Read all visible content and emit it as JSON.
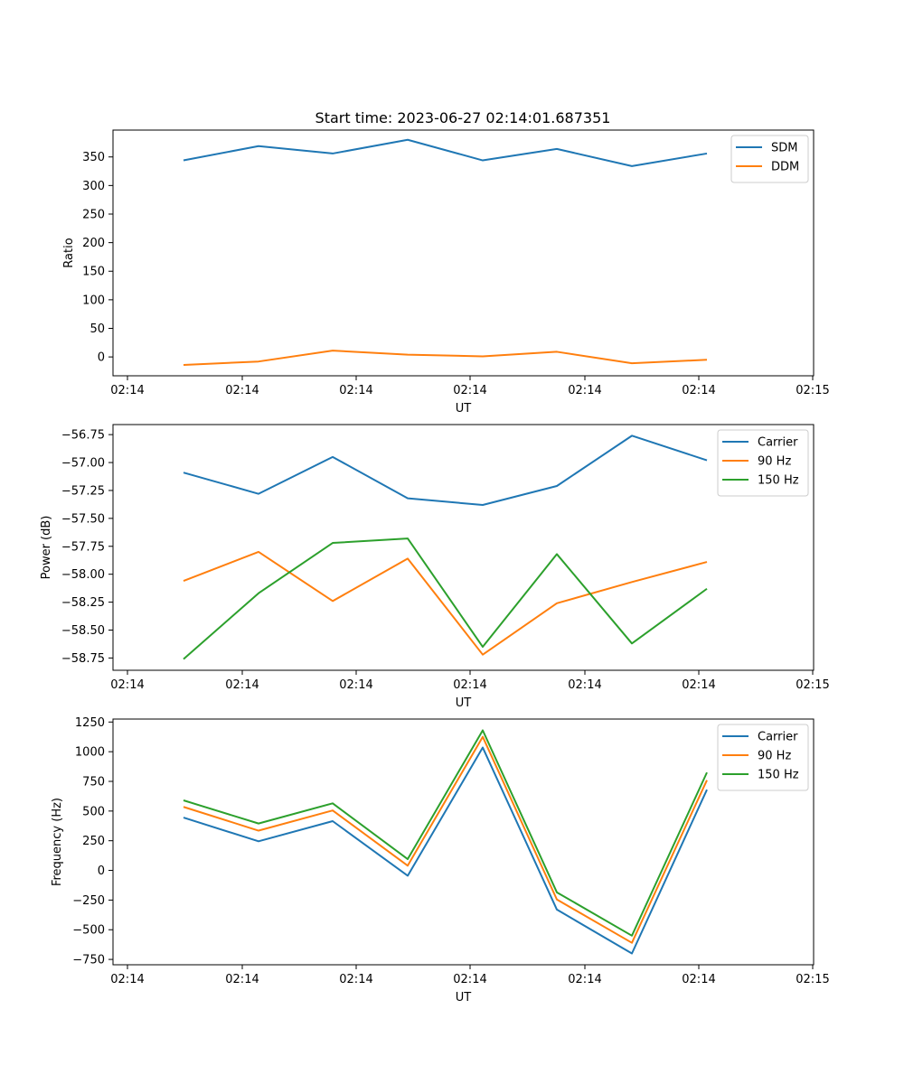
{
  "figure": {
    "title": "Start time: 2023-06-27 02:14:01.687351"
  },
  "colors": {
    "blue": "#1f77b4",
    "orange": "#ff7f0e",
    "green": "#2ca02c"
  },
  "chart_data": [
    {
      "type": "line",
      "title": "Start time: 2023-06-27 02:14:01.687351",
      "xlabel": "UT",
      "ylabel": "Ratio",
      "x_tick_labels": [
        "02:14",
        "02:14",
        "02:14",
        "02:14",
        "02:14",
        "02:14",
        "02:15"
      ],
      "ylim": [
        -33,
        397
      ],
      "y_ticks": [
        0,
        50,
        100,
        150,
        200,
        250,
        300,
        350
      ],
      "y_tick_labels": [
        "0",
        "50",
        "100",
        "150",
        "200",
        "250",
        "300",
        "350"
      ],
      "grid": false,
      "legend": "top-right",
      "series": [
        {
          "name": "SDM",
          "color": "#1f77b4",
          "values": [
            344,
            369,
            356,
            380,
            344,
            364,
            334,
            356
          ]
        },
        {
          "name": "DDM",
          "color": "#ff7f0e",
          "values": [
            -14,
            -8,
            11,
            4,
            1,
            9,
            -11,
            -5
          ]
        }
      ]
    },
    {
      "type": "line",
      "title": "",
      "xlabel": "UT",
      "ylabel": "Power (dB)",
      "x_tick_labels": [
        "02:14",
        "02:14",
        "02:14",
        "02:14",
        "02:14",
        "02:14",
        "02:15"
      ],
      "ylim": [
        -58.86,
        -56.66
      ],
      "y_ticks": [
        -58.75,
        -58.5,
        -58.25,
        -58.0,
        -57.75,
        -57.5,
        -57.25,
        -57.0,
        -56.75
      ],
      "y_tick_labels": [
        "−58.75",
        "−58.50",
        "−58.25",
        "−58.00",
        "−57.75",
        "−57.50",
        "−57.25",
        "−57.00",
        "−56.75"
      ],
      "grid": false,
      "legend": "top-right",
      "series": [
        {
          "name": "Carrier",
          "color": "#1f77b4",
          "values": [
            -57.09,
            -57.28,
            -56.95,
            -57.32,
            -57.38,
            -57.21,
            -56.76,
            -56.98
          ]
        },
        {
          "name": "90 Hz",
          "color": "#ff7f0e",
          "values": [
            -58.06,
            -57.8,
            -58.24,
            -57.86,
            -58.72,
            -58.26,
            -58.07,
            -57.89
          ]
        },
        {
          "name": "150 Hz",
          "color": "#2ca02c",
          "values": [
            -58.76,
            -58.17,
            -57.72,
            -57.68,
            -58.65,
            -57.82,
            -58.62,
            -58.13
          ]
        }
      ]
    },
    {
      "type": "line",
      "title": "",
      "xlabel": "UT",
      "ylabel": "Frequency (Hz)",
      "x_tick_labels": [
        "02:14",
        "02:14",
        "02:14",
        "02:14",
        "02:14",
        "02:14",
        "02:15"
      ],
      "ylim": [
        -795,
        1275
      ],
      "y_ticks": [
        -750,
        -500,
        -250,
        0,
        250,
        500,
        750,
        1000,
        1250
      ],
      "y_tick_labels": [
        "−750",
        "−500",
        "−250",
        "0",
        "250",
        "500",
        "750",
        "1000",
        "1250"
      ],
      "grid": false,
      "legend": "top-right",
      "series": [
        {
          "name": "Carrier",
          "color": "#1f77b4",
          "values": [
            445,
            245,
            415,
            -45,
            1035,
            -330,
            -700,
            680
          ]
        },
        {
          "name": "90 Hz",
          "color": "#ff7f0e",
          "values": [
            535,
            335,
            505,
            40,
            1125,
            -245,
            -610,
            760
          ]
        },
        {
          "name": "150 Hz",
          "color": "#2ca02c",
          "values": [
            590,
            395,
            565,
            95,
            1180,
            -185,
            -550,
            825
          ]
        }
      ]
    }
  ]
}
